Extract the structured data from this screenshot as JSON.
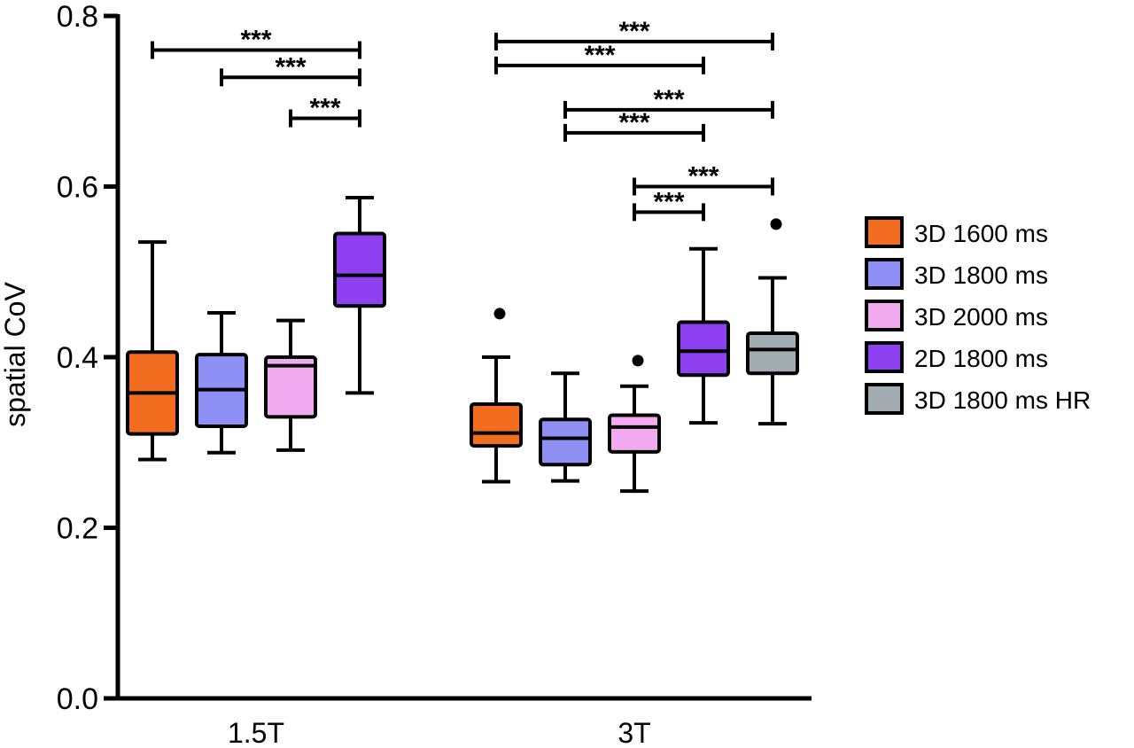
{
  "chart_data": {
    "type": "box",
    "ylabel": "spatial CoV",
    "ylim": [
      0.0,
      0.8
    ],
    "yticks": [
      "0.0",
      "0.2",
      "0.4",
      "0.6",
      "0.8"
    ],
    "ytick_values": [
      0.0,
      0.2,
      0.4,
      0.6,
      0.8
    ],
    "categories": [
      "1.5T",
      "3T"
    ],
    "legend_position": "right",
    "series": [
      {
        "name": "3D 1600 ms",
        "color": "#f26d1f"
      },
      {
        "name": "3D 1800 ms",
        "color": "#8f90f5"
      },
      {
        "name": "3D 2000 ms",
        "color": "#f2aaf0"
      },
      {
        "name": "2D 1800 ms",
        "color": "#8e3ff0"
      },
      {
        "name": "3D 1800 ms HR",
        "color": "#a3acb1"
      }
    ],
    "boxes": [
      {
        "category": "1.5T",
        "series": "3D 1600 ms",
        "min": 0.28,
        "q1": 0.31,
        "median": 0.358,
        "q3": 0.406,
        "max": 0.535,
        "outliers": []
      },
      {
        "category": "1.5T",
        "series": "3D 1800 ms",
        "min": 0.288,
        "q1": 0.319,
        "median": 0.362,
        "q3": 0.403,
        "max": 0.452,
        "outliers": []
      },
      {
        "category": "1.5T",
        "series": "3D 2000 ms",
        "min": 0.291,
        "q1": 0.33,
        "median": 0.39,
        "q3": 0.4,
        "max": 0.443,
        "outliers": []
      },
      {
        "category": "1.5T",
        "series": "2D 1800 ms",
        "min": 0.358,
        "q1": 0.46,
        "median": 0.496,
        "q3": 0.545,
        "max": 0.587,
        "outliers": []
      },
      {
        "category": "3T",
        "series": "3D 1600 ms",
        "min": 0.254,
        "q1": 0.296,
        "median": 0.311,
        "q3": 0.345,
        "max": 0.4,
        "outliers": [
          0.451
        ]
      },
      {
        "category": "3T",
        "series": "3D 1800 ms",
        "min": 0.255,
        "q1": 0.274,
        "median": 0.305,
        "q3": 0.327,
        "max": 0.381,
        "outliers": []
      },
      {
        "category": "3T",
        "series": "3D 2000 ms",
        "min": 0.243,
        "q1": 0.289,
        "median": 0.318,
        "q3": 0.332,
        "max": 0.366,
        "outliers": [
          0.396
        ]
      },
      {
        "category": "3T",
        "series": "2D 1800 ms",
        "min": 0.323,
        "q1": 0.379,
        "median": 0.407,
        "q3": 0.441,
        "max": 0.527,
        "outliers": []
      },
      {
        "category": "3T",
        "series": "3D 1800 ms HR",
        "min": 0.322,
        "q1": 0.381,
        "median": 0.409,
        "q3": 0.428,
        "max": 0.493,
        "outliers": [
          0.556
        ]
      }
    ],
    "significance": [
      {
        "category": "1.5T",
        "from": "3D 1600 ms",
        "to": "2D 1800 ms",
        "y": 0.76,
        "label": "***"
      },
      {
        "category": "1.5T",
        "from": "3D 1800 ms",
        "to": "2D 1800 ms",
        "y": 0.728,
        "label": "***"
      },
      {
        "category": "1.5T",
        "from": "3D 2000 ms",
        "to": "2D 1800 ms",
        "y": 0.68,
        "label": "***"
      },
      {
        "category": "3T",
        "from": "3D 1600 ms",
        "to": "3D 1800 ms HR",
        "y": 0.77,
        "label": "***"
      },
      {
        "category": "3T",
        "from": "3D 1600 ms",
        "to": "2D 1800 ms",
        "y": 0.742,
        "label": "***"
      },
      {
        "category": "3T",
        "from": "3D 1800 ms",
        "to": "3D 1800 ms HR",
        "y": 0.69,
        "label": "***"
      },
      {
        "category": "3T",
        "from": "3D 1800 ms",
        "to": "2D 1800 ms",
        "y": 0.663,
        "label": "***"
      },
      {
        "category": "3T",
        "from": "3D 2000 ms",
        "to": "3D 1800 ms HR",
        "y": 0.6,
        "label": "***"
      },
      {
        "category": "3T",
        "from": "3D 2000 ms",
        "to": "2D 1800 ms",
        "y": 0.57,
        "label": "***"
      }
    ]
  }
}
